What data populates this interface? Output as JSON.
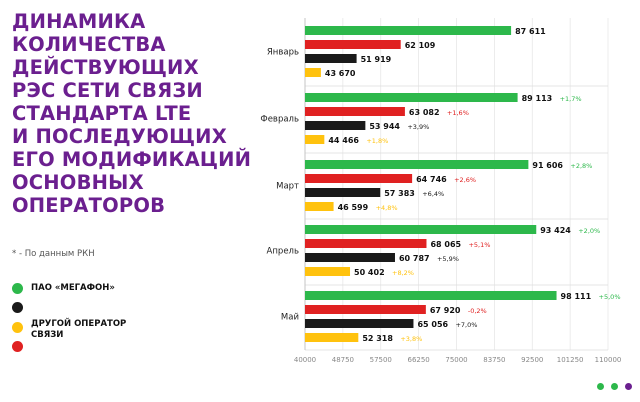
{
  "title_lines": [
    "ДИНАМИКА",
    "КОЛИЧЕСТВА",
    "ДЕЙСТВУЮЩИХ",
    "РЭС СЕТИ СВЯЗИ",
    "СТАНДАРТА LTE",
    "И ПОСЛЕДУЮЩИХ",
    "ЕГО МОДИФИКАЦИЙ",
    "ОСНОВНЫХ",
    "ОПЕРАТОРОВ"
  ],
  "note": "* - По данным РКН",
  "legend": {
    "megafon": "ПАО «МЕГАФОН»",
    "others": [
      "ДРУГОЙ ОПЕРАТОР",
      "СВЯЗИ"
    ]
  },
  "colors": {
    "title": "#6b1f8f",
    "green": "#2db84b",
    "red": "#e02121",
    "black": "#1a1a1a",
    "yellow": "#ffc20e"
  },
  "chart_data": {
    "type": "bar",
    "orientation": "horizontal",
    "categories": [
      "Январь",
      "Февраль",
      "Март",
      "Апрель",
      "Май"
    ],
    "series": [
      {
        "color": "green",
        "values": [
          87611,
          89113,
          91606,
          93424,
          98111
        ],
        "labels": [
          "87 611",
          "89 113",
          "91 606",
          "93 424",
          "98 111"
        ],
        "changes": [
          "",
          "+1,7%",
          "+2,8%",
          "+2,0%",
          "+5,0%"
        ]
      },
      {
        "color": "red",
        "values": [
          62109,
          63082,
          64746,
          68065,
          67920
        ],
        "labels": [
          "62 109",
          "63 082",
          "64 746",
          "68 065",
          "67 920"
        ],
        "changes": [
          "",
          "+1,6%",
          "+2,6%",
          "+5,1%",
          "-0,2%"
        ]
      },
      {
        "color": "black",
        "values": [
          51919,
          53944,
          57383,
          60787,
          65056
        ],
        "labels": [
          "51 919",
          "53 944",
          "57 383",
          "60 787",
          "65 056"
        ],
        "changes": [
          "",
          "+3,9%",
          "+6,4%",
          "+5,9%",
          "+7,0%"
        ]
      },
      {
        "color": "yellow",
        "values": [
          43670,
          44466,
          46599,
          50402,
          52318
        ],
        "labels": [
          "43 670",
          "44 466",
          "46 599",
          "50 402",
          "52 318"
        ],
        "changes": [
          "",
          "+1,8%",
          "+4,8%",
          "+8,2%",
          "+3,8%"
        ]
      }
    ],
    "xlim": [
      40000,
      110000
    ],
    "xticks": [
      40000,
      48750,
      57500,
      66250,
      75000,
      83750,
      92500,
      101250,
      110000
    ],
    "grid": true
  }
}
